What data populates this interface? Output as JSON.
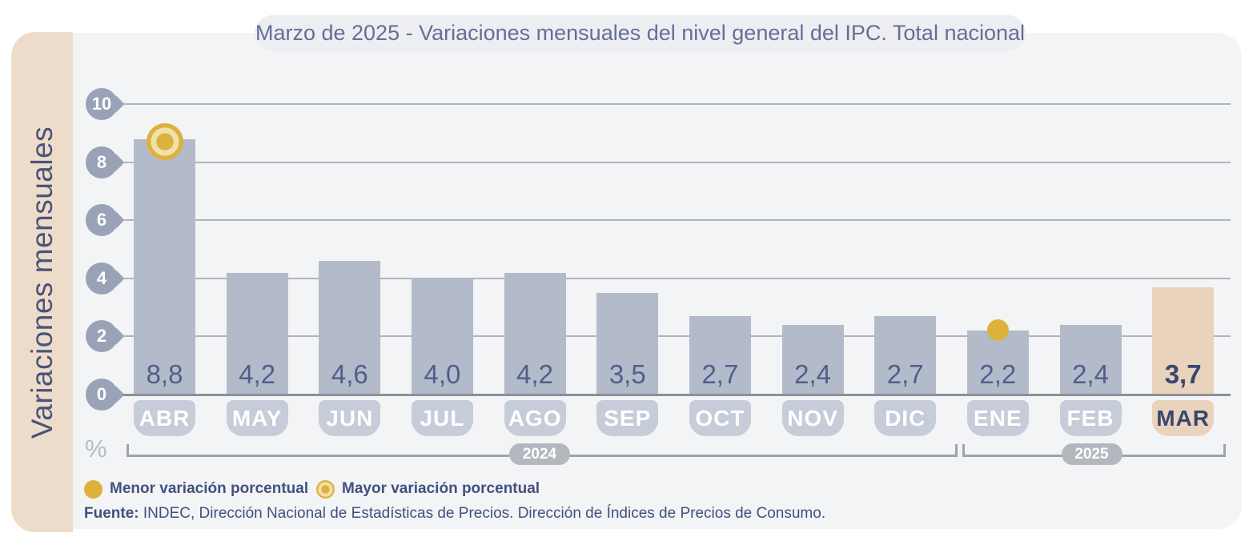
{
  "title": "Marzo de 2025 - Variaciones mensuales del nivel general del IPC. Total nacional",
  "y_axis_label": "Variaciones mensuales",
  "percent_symbol": "%",
  "chart_data": {
    "type": "bar",
    "categories": [
      "ABR",
      "MAY",
      "JUN",
      "JUL",
      "AGO",
      "SEP",
      "OCT",
      "NOV",
      "DIC",
      "ENE",
      "FEB",
      "MAR"
    ],
    "values": [
      8.8,
      4.2,
      4.6,
      4.0,
      4.2,
      3.5,
      2.7,
      2.4,
      2.7,
      2.2,
      2.4,
      3.7
    ],
    "value_labels": [
      "8,8",
      "4,2",
      "4,6",
      "4,0",
      "4,2",
      "3,5",
      "2,7",
      "2,4",
      "2,7",
      "2,2",
      "2,4",
      "3,7"
    ],
    "y_ticks": [
      0,
      2,
      4,
      6,
      8,
      10
    ],
    "ylim": [
      0,
      10
    ],
    "grid": true,
    "title": "Marzo de 2025 - Variaciones mensuales del nivel general del IPC. Total nacional",
    "xlabel": "",
    "ylabel": "Variaciones mensuales",
    "unit": "%",
    "highlighted_category": "MAR",
    "max_marker": {
      "category": "ABR",
      "meaning": "Mayor variación porcentual"
    },
    "min_marker": {
      "category": "ENE",
      "meaning": "Menor variación porcentual"
    },
    "year_groups": [
      {
        "label": "2024",
        "from": "ABR",
        "to": "DIC"
      },
      {
        "label": "2025",
        "from": "ENE",
        "to": "MAR"
      }
    ]
  },
  "legend": [
    {
      "label": "Menor variación porcentual",
      "marker": "solid-gold-dot"
    },
    {
      "label": "Mayor variación porcentual",
      "marker": "gold-ring-dot"
    }
  ],
  "source": {
    "prefix": "Fuente:",
    "text": " INDEC, Dirección Nacional de Estadísticas de Precios. Dirección de Índices de Precios de Consumo."
  },
  "colors": {
    "bar": "#b3bbca",
    "bar_highlight": "#e9d3bd",
    "tag": "#c6ccd8",
    "tag_text": "#ffffff",
    "highlight_text": "#39466f",
    "value_text": "#515e8a",
    "gold": "#dcb23c",
    "panel_bg": "#f3f4f6",
    "strip_bg": "#eedcca",
    "strip_text": "#4a5479",
    "tick_bg": "#9aa2b7",
    "grid": "#b0b3bb",
    "axis": "#8b909c",
    "bracket": "#9fa3ab",
    "pill_bg": "#b4b7bd",
    "title_text": "#676d97",
    "legend_text": "#43507f"
  }
}
